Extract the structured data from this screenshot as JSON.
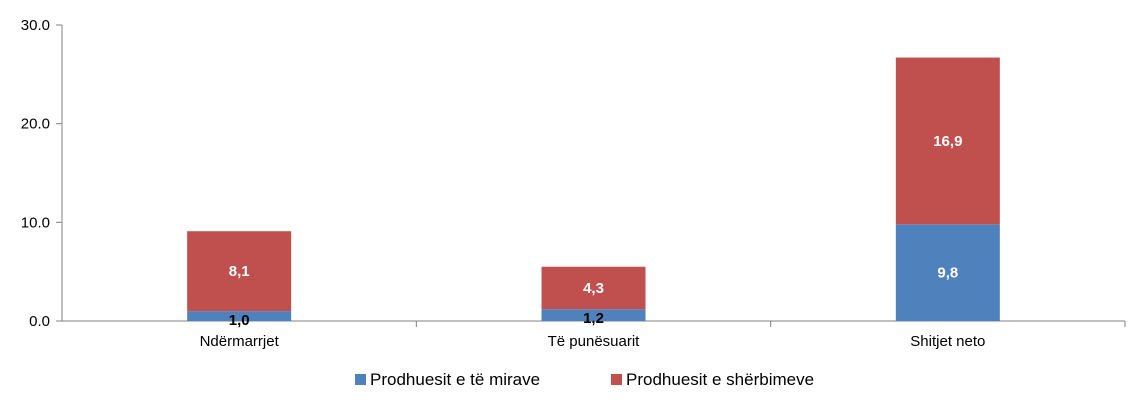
{
  "chart_data": {
    "type": "bar",
    "stacked": true,
    "categories": [
      "Ndërmarrjet",
      "Të  punësuarit",
      "Shitjet neto"
    ],
    "series": [
      {
        "name": "Prodhuesit e të mirave",
        "values": [
          1.0,
          1.2,
          9.8
        ],
        "labels": [
          "1,0",
          "1,2",
          "9,8"
        ],
        "color": "#4F81BD"
      },
      {
        "name": "Prodhuesit e shërbimeve",
        "values": [
          8.1,
          4.3,
          16.9
        ],
        "labels": [
          "8,1",
          "4,3",
          "16,9"
        ],
        "color": "#C0504D"
      }
    ],
    "y_ticks": [
      "0.0",
      "10.0",
      "20.0",
      "30.0"
    ],
    "y_tick_values": [
      0,
      10,
      20,
      30
    ],
    "ylim": [
      0,
      30
    ],
    "grid": false,
    "legend_position": "bottom",
    "axis_color": "#808080"
  }
}
